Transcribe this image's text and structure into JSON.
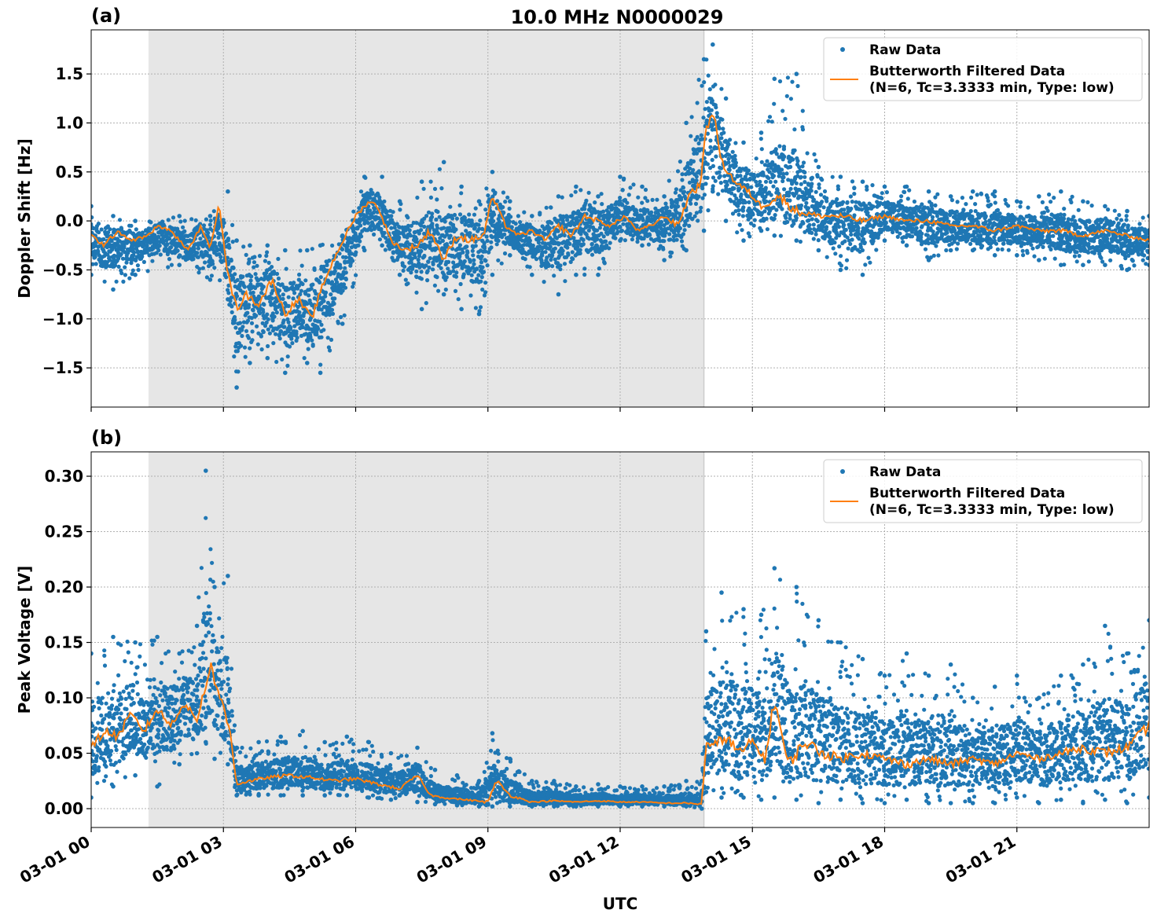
{
  "title": "10.0 MHz N0000029",
  "xlabel": "UTC",
  "x_tick_labels": [
    "03-01 00",
    "03-01 03",
    "03-01 06",
    "03-01 09",
    "03-01 12",
    "03-01 15",
    "03-01 18",
    "03-01 21"
  ],
  "legend": {
    "raw": "Raw Data",
    "filtered_line1": "Butterworth Filtered Data",
    "filtered_line2": "(N=6, Tc=3.3333 min, Type: low)"
  },
  "colors": {
    "raw": "#1f77b4",
    "filtered": "#ff7f0e",
    "shade": "#e6e6e6"
  },
  "chart_data": [
    {
      "type": "scatter",
      "panel_label": "(a)",
      "ylabel": "Doppler Shift [Hz]",
      "x_unit": "hours UTC since 03-01 00",
      "xlim": [
        0,
        24
      ],
      "ylim": [
        -1.9,
        1.95
      ],
      "y_ticks": [
        1.5,
        1.0,
        0.5,
        0.0,
        -0.5,
        -1.0,
        -1.5
      ],
      "y_tick_labels": [
        "1.5",
        "1.0",
        "0.5",
        "0.0",
        "−0.5",
        "−1.0",
        "−1.5"
      ],
      "shaded_interval": [
        1.3,
        13.9
      ],
      "grid": true,
      "legend_position": "upper right",
      "series": [
        {
          "name": "Butterworth Filtered Data",
          "style": "line",
          "x": [
            0,
            0.3,
            0.6,
            0.9,
            1.3,
            1.5,
            1.8,
            2.2,
            2.5,
            2.7,
            2.9,
            3.1,
            3.3,
            3.5,
            3.8,
            4.1,
            4.4,
            4.7,
            5.0,
            5.3,
            5.6,
            6.0,
            6.3,
            6.5,
            6.8,
            7.1,
            7.4,
            7.7,
            8.0,
            8.3,
            8.6,
            8.9,
            9.1,
            9.4,
            9.7,
            10.0,
            10.3,
            10.6,
            10.9,
            11.2,
            11.5,
            11.8,
            12.1,
            12.4,
            12.7,
            13.0,
            13.3,
            13.6,
            13.8,
            13.95,
            14.1,
            14.3,
            14.6,
            14.9,
            15.2,
            15.6,
            16.0,
            16.5,
            17.0,
            17.5,
            18.0,
            18.5,
            19.0,
            19.5,
            20.0,
            20.5,
            21.0,
            21.5,
            22.0,
            22.5,
            23.0,
            23.5,
            24.0
          ],
          "y": [
            -0.15,
            -0.25,
            -0.1,
            -0.2,
            -0.15,
            -0.05,
            -0.1,
            -0.3,
            -0.05,
            -0.3,
            0.2,
            -0.55,
            -0.9,
            -0.75,
            -0.85,
            -0.6,
            -0.95,
            -0.8,
            -1.0,
            -0.6,
            -0.3,
            0.05,
            0.2,
            0.15,
            -0.2,
            -0.3,
            -0.25,
            -0.1,
            -0.4,
            -0.15,
            -0.2,
            -0.15,
            0.25,
            -0.05,
            -0.15,
            -0.1,
            -0.2,
            -0.05,
            -0.15,
            0.05,
            0.0,
            -0.05,
            0.05,
            -0.1,
            -0.05,
            0.05,
            -0.05,
            0.3,
            0.35,
            0.9,
            1.15,
            0.6,
            0.4,
            0.3,
            0.15,
            0.25,
            0.1,
            0.05,
            0.05,
            0.0,
            0.05,
            0.0,
            0.0,
            -0.05,
            -0.05,
            -0.1,
            -0.05,
            -0.1,
            -0.1,
            -0.15,
            -0.1,
            -0.15,
            -0.2
          ]
        },
        {
          "name": "Raw Data",
          "style": "points",
          "x": [
            0,
            0.5,
            1.0,
            2.0,
            2.7,
            3.1,
            3.3,
            3.6,
            4.0,
            4.4,
            4.9,
            5.2,
            5.7,
            6.2,
            6.6,
            7.0,
            7.5,
            8.0,
            8.4,
            8.8,
            9.1,
            9.5,
            10.0,
            10.6,
            11.0,
            11.5,
            12.0,
            12.5,
            13.0,
            13.5,
            13.9,
            14.1,
            14.4,
            14.8,
            15.2,
            15.5,
            16.0,
            16.5,
            17.0,
            17.5,
            18.0,
            18.5,
            19.0,
            19.5,
            20.0,
            20.5,
            21.0,
            21.5,
            22.0,
            22.5,
            23.0,
            23.5,
            24.0
          ],
          "y_min": [
            -0.55,
            -0.7,
            -0.55,
            -0.45,
            -0.6,
            -0.8,
            -1.7,
            -1.45,
            -1.4,
            -1.55,
            -1.45,
            -1.55,
            -1.05,
            -0.3,
            -0.25,
            -0.55,
            -0.9,
            -0.75,
            -0.9,
            -0.95,
            -0.55,
            -0.35,
            -0.55,
            -0.75,
            -0.55,
            -0.55,
            -0.2,
            -0.25,
            -0.4,
            -0.3,
            -0.1,
            0.3,
            0.0,
            -0.2,
            -0.1,
            -0.15,
            -0.2,
            -0.3,
            -0.5,
            -0.55,
            -0.2,
            -0.25,
            -0.4,
            -0.3,
            -0.3,
            -0.35,
            -0.35,
            -0.4,
            -0.45,
            -0.45,
            -0.45,
            -0.5,
            -0.45
          ],
          "y_max": [
            0.15,
            0.05,
            0.0,
            0.05,
            0.05,
            0.3,
            -0.2,
            -0.25,
            -0.25,
            -0.3,
            -0.3,
            -0.25,
            -0.15,
            0.45,
            0.45,
            0.2,
            0.4,
            0.6,
            0.35,
            0.2,
            0.5,
            0.2,
            0.05,
            0.25,
            0.35,
            0.25,
            0.45,
            0.35,
            0.25,
            1.0,
            1.65,
            1.8,
            1.25,
            0.8,
            0.9,
            1.45,
            1.5,
            0.55,
            0.45,
            0.4,
            0.35,
            0.35,
            0.3,
            0.25,
            0.3,
            0.3,
            0.2,
            0.25,
            0.3,
            0.2,
            0.15,
            0.1,
            0.05
          ]
        }
      ]
    },
    {
      "type": "scatter",
      "panel_label": "(b)",
      "ylabel": "Peak Voltage [V]",
      "x_unit": "hours UTC since 03-01 00",
      "xlim": [
        0,
        24
      ],
      "ylim": [
        -0.017,
        0.322
      ],
      "y_ticks": [
        0.3,
        0.25,
        0.2,
        0.15,
        0.1,
        0.05,
        0.0
      ],
      "y_tick_labels": [
        "0.30",
        "0.25",
        "0.20",
        "0.15",
        "0.10",
        "0.05",
        "0.00"
      ],
      "shaded_interval": [
        1.3,
        13.9
      ],
      "grid": true,
      "legend_position": "upper right",
      "series": [
        {
          "name": "Butterworth Filtered Data",
          "style": "line",
          "x": [
            0,
            0.3,
            0.6,
            0.9,
            1.2,
            1.5,
            1.8,
            2.1,
            2.4,
            2.7,
            3.0,
            3.15,
            3.3,
            3.6,
            4.0,
            4.5,
            5.0,
            5.5,
            6.0,
            6.5,
            7.0,
            7.4,
            7.7,
            8.0,
            8.5,
            9.0,
            9.2,
            9.5,
            10.0,
            10.5,
            11.0,
            11.5,
            12.0,
            12.5,
            13.0,
            13.5,
            13.85,
            13.95,
            14.1,
            14.4,
            14.7,
            15.0,
            15.3,
            15.5,
            15.8,
            16.2,
            16.6,
            17.0,
            17.5,
            18.0,
            18.5,
            19.0,
            19.5,
            20.0,
            20.5,
            21.0,
            21.5,
            22.0,
            22.5,
            23.0,
            23.5,
            24.0
          ],
          "y": [
            0.055,
            0.07,
            0.065,
            0.085,
            0.07,
            0.09,
            0.075,
            0.095,
            0.08,
            0.13,
            0.09,
            0.07,
            0.022,
            0.025,
            0.028,
            0.03,
            0.028,
            0.025,
            0.027,
            0.022,
            0.018,
            0.03,
            0.012,
            0.01,
            0.008,
            0.006,
            0.025,
            0.012,
            0.006,
            0.007,
            0.006,
            0.007,
            0.006,
            0.006,
            0.005,
            0.005,
            0.004,
            0.06,
            0.055,
            0.065,
            0.05,
            0.06,
            0.045,
            0.1,
            0.04,
            0.06,
            0.05,
            0.045,
            0.05,
            0.045,
            0.04,
            0.045,
            0.04,
            0.045,
            0.04,
            0.05,
            0.045,
            0.05,
            0.055,
            0.05,
            0.055,
            0.075
          ]
        },
        {
          "name": "Raw Data",
          "style": "points",
          "x": [
            0,
            0.5,
            1.0,
            1.5,
            2.0,
            2.4,
            2.6,
            2.8,
            3.1,
            3.3,
            3.8,
            4.3,
            4.8,
            5.3,
            5.8,
            6.3,
            6.8,
            7.4,
            7.8,
            8.3,
            8.8,
            9.1,
            9.5,
            10.0,
            10.5,
            11.0,
            11.5,
            12.0,
            12.5,
            13.0,
            13.5,
            13.85,
            13.95,
            14.3,
            14.8,
            15.2,
            15.5,
            16.0,
            16.5,
            17.0,
            17.5,
            18.0,
            18.5,
            19.0,
            19.5,
            20.0,
            20.5,
            21.0,
            21.5,
            22.0,
            22.5,
            23.0,
            23.5,
            24.0
          ],
          "y_min": [
            0.01,
            0.02,
            0.03,
            0.02,
            0.04,
            0.05,
            0.06,
            0.045,
            0.04,
            0.012,
            0.012,
            0.012,
            0.012,
            0.012,
            0.012,
            0.01,
            0.008,
            0.006,
            0.004,
            0.003,
            0.002,
            0.002,
            0.002,
            0.002,
            0.002,
            0.002,
            0.002,
            0.002,
            0.002,
            0.002,
            0.002,
            0.0,
            0.015,
            0.01,
            0.01,
            0.008,
            0.01,
            0.008,
            0.005,
            0.008,
            0.005,
            0.005,
            0.008,
            0.005,
            0.005,
            0.005,
            0.005,
            0.01,
            0.005,
            0.008,
            0.005,
            0.008,
            0.005,
            0.01
          ],
          "y_max": [
            0.14,
            0.155,
            0.15,
            0.155,
            0.14,
            0.165,
            0.305,
            0.2,
            0.21,
            0.055,
            0.06,
            0.065,
            0.07,
            0.06,
            0.065,
            0.06,
            0.05,
            0.055,
            0.035,
            0.03,
            0.025,
            0.068,
            0.045,
            0.025,
            0.025,
            0.02,
            0.022,
            0.02,
            0.02,
            0.02,
            0.025,
            0.025,
            0.16,
            0.195,
            0.18,
            0.175,
            0.217,
            0.2,
            0.17,
            0.15,
            0.135,
            0.12,
            0.14,
            0.12,
            0.13,
            0.1,
            0.11,
            0.12,
            0.1,
            0.12,
            0.13,
            0.165,
            0.14,
            0.17
          ]
        }
      ]
    }
  ]
}
